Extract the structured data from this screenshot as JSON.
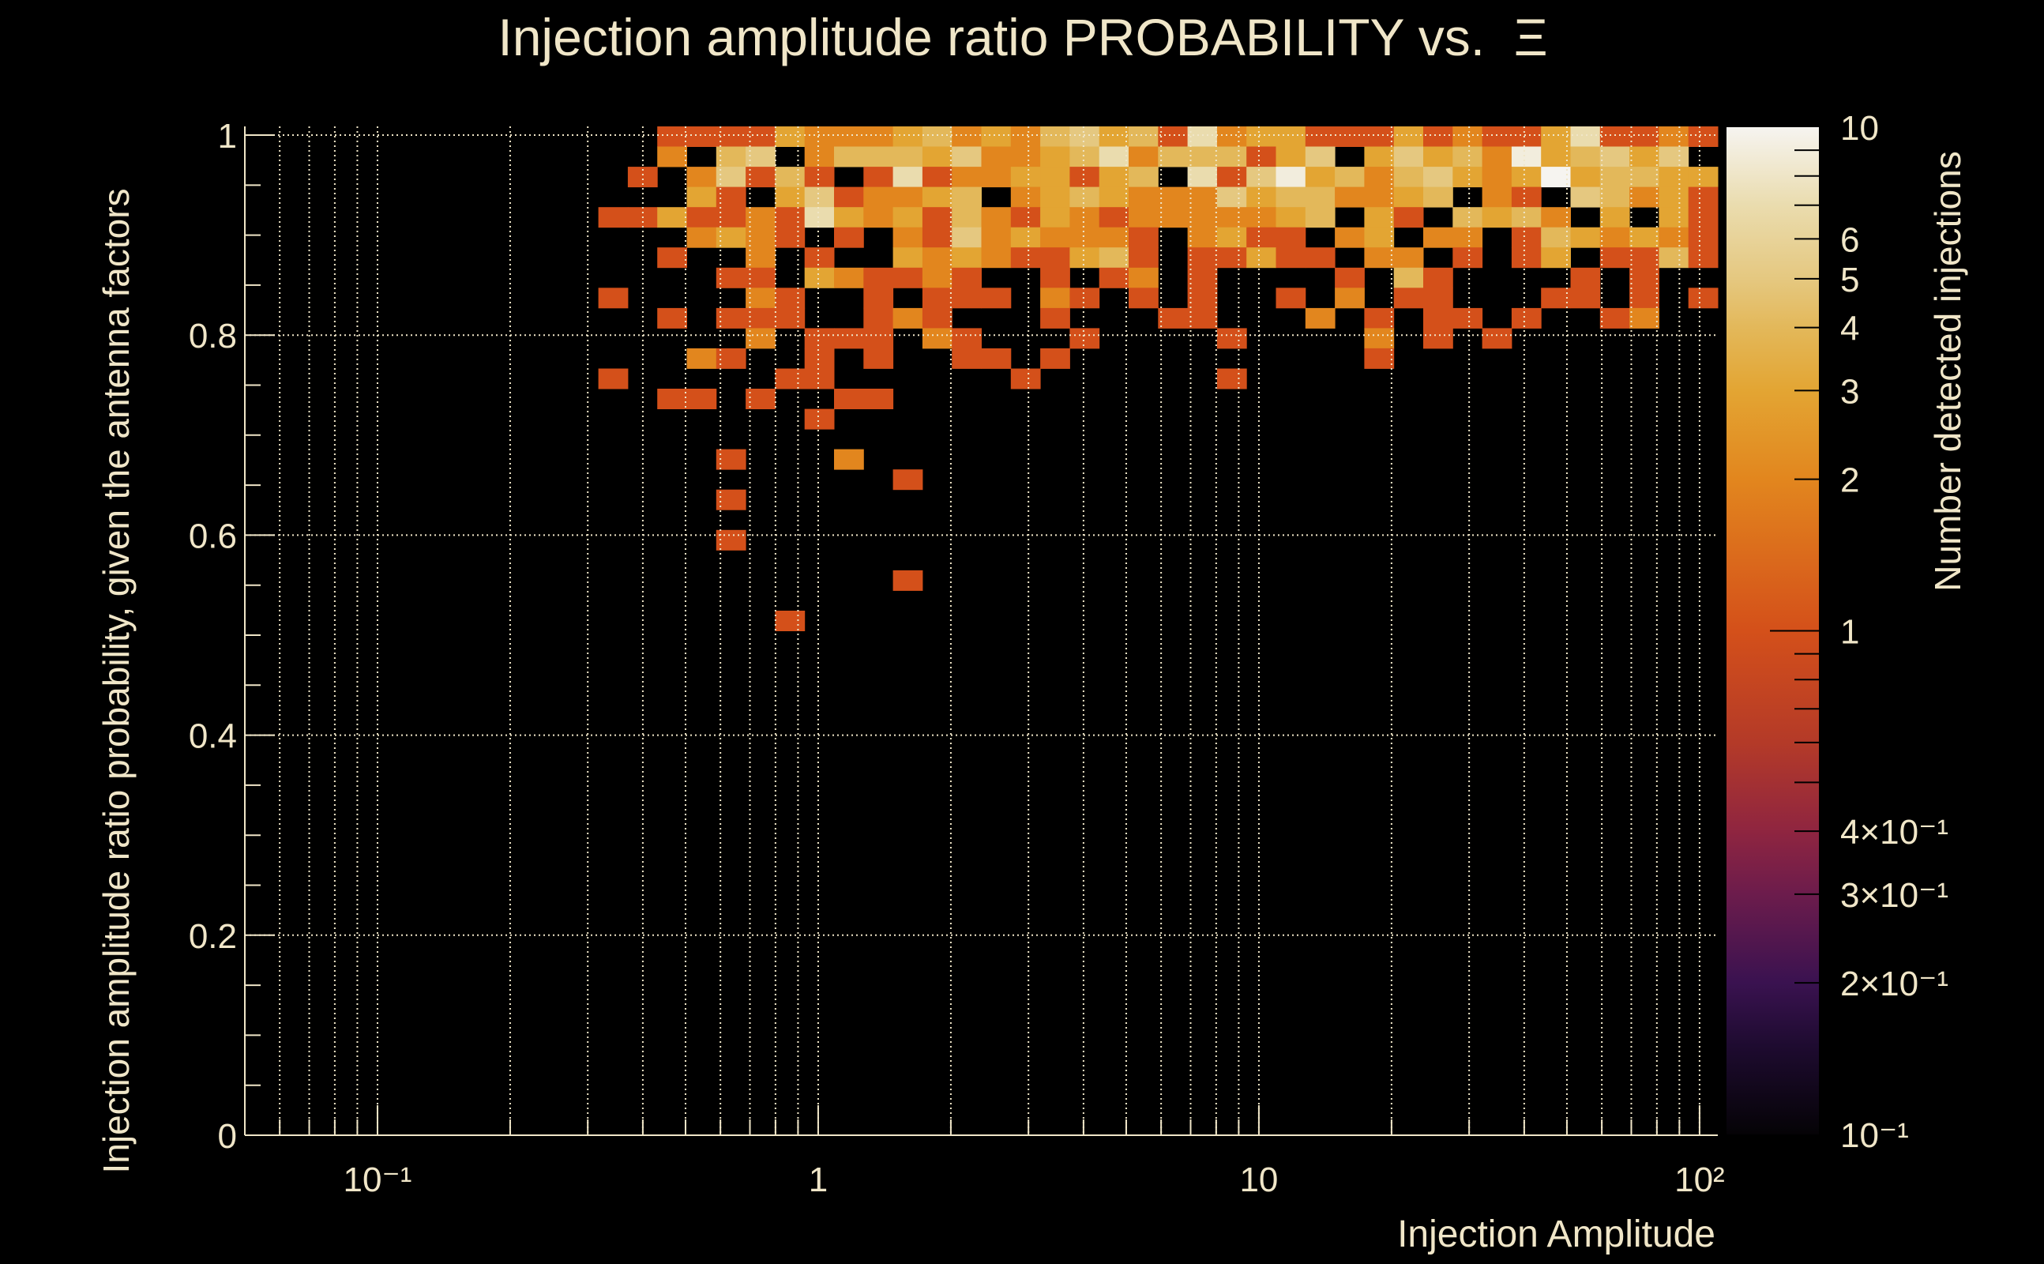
{
  "chart_data": {
    "type": "heatmap",
    "title": "Injection amplitude ratio PROBABILITY vs.  Ξ",
    "xlabel": "Injection Amplitude",
    "ylabel": "Injection amplitude ratio probability, given the antenna factors",
    "zlabel": "Number detected injections",
    "x_scale": "log",
    "xlim": [
      0.05,
      110
    ],
    "ylim": [
      0,
      1.0087
    ],
    "zlim": [
      0.1,
      10
    ],
    "z_scale": "log",
    "x_bins": 50,
    "y_bins": 50,
    "grid": true,
    "x_ticks": [
      {
        "value": 0.1,
        "label": "10⁻¹"
      },
      {
        "value": 1,
        "label": "1"
      },
      {
        "value": 10,
        "label": "10"
      },
      {
        "value": 100,
        "label": "10²"
      }
    ],
    "y_ticks": [
      {
        "value": 0,
        "label": "0"
      },
      {
        "value": 0.2,
        "label": "0.2"
      },
      {
        "value": 0.4,
        "label": "0.4"
      },
      {
        "value": 0.6,
        "label": "0.6"
      },
      {
        "value": 0.8,
        "label": "0.8"
      },
      {
        "value": 1,
        "label": "1"
      }
    ],
    "z_ticks": [
      {
        "value": 10,
        "label": "10"
      },
      {
        "value": 6,
        "label": "6"
      },
      {
        "value": 5,
        "label": "5"
      },
      {
        "value": 4,
        "label": "4"
      },
      {
        "value": 3,
        "label": "3"
      },
      {
        "value": 2,
        "label": "2"
      },
      {
        "value": 1,
        "label": "1"
      },
      {
        "value": 0.4,
        "label": "4×10⁻¹"
      },
      {
        "value": 0.3,
        "label": "3×10⁻¹"
      },
      {
        "value": 0.2,
        "label": "2×10⁻¹"
      },
      {
        "value": 0.1,
        "label": "10⁻¹"
      }
    ],
    "counts_rows_from_top": [
      "0000000000000011113222342324534",
      "0000000000000020450244435223472",
      "0000000000000102514101712233134",
      "0000000000000003103512234023432",
      "0000000000001131121732314213212",
      "0000000000000002321010215232221",
      "0000000000000010020100323211341",
      "0000000000000000110321121001012",
      "0000000000001000021001011102101",
      "0000000000000010111001210001000",
      "0000000000000000020111021000100",
      "0000000000000002100101001101000",
      "0000000000001000001100000010000",
      "0000000000000011010011000000000",
      "0000000000000000000100000000000",
      "0000000000000000000000000000000",
      "0000000000000000100020000000000",
      "0000000000000000000000100000000",
      "0000000000000000100000000000000",
      "0000000000000000000000000000000",
      "0000000000000000100000000000000",
      "0000000000000000000000000000000",
      "0000000000000000000000100000000",
      "0000000000000000000000000000000",
      "0000000000000000001000000000000"
    ],
    "counts_rows_right": [
      "1723311131211371121",
      "4441350353429345350",
      "0715934245323a34433",
      "2253442234021054231",
      "2222340310434203031",
      "0231102302201432321",
      "0113110220101301141",
      "0100001041000010100",
      "0100102011000110101",
      "1100020101101001200",
      "0010000201010000000",
      "0000000100000000000",
      "0010000000000000000"
    ],
    "colormap": [
      [
        0.1,
        "#050306"
      ],
      [
        0.15,
        "#1e0b30"
      ],
      [
        0.2,
        "#3a1250"
      ],
      [
        0.3,
        "#6c1c4c"
      ],
      [
        0.4,
        "#8f2540"
      ],
      [
        0.6,
        "#b43a28"
      ],
      [
        1,
        "#d4501a"
      ],
      [
        2,
        "#e2861e"
      ],
      [
        3,
        "#e3a533"
      ],
      [
        4,
        "#e3b85a"
      ],
      [
        5,
        "#e5c880"
      ],
      [
        7,
        "#eadcae"
      ],
      [
        10,
        "#f6f4f0"
      ]
    ],
    "text_color": "#f0e6c8",
    "grid_color": "#f0e6c8",
    "background": "#000000"
  }
}
